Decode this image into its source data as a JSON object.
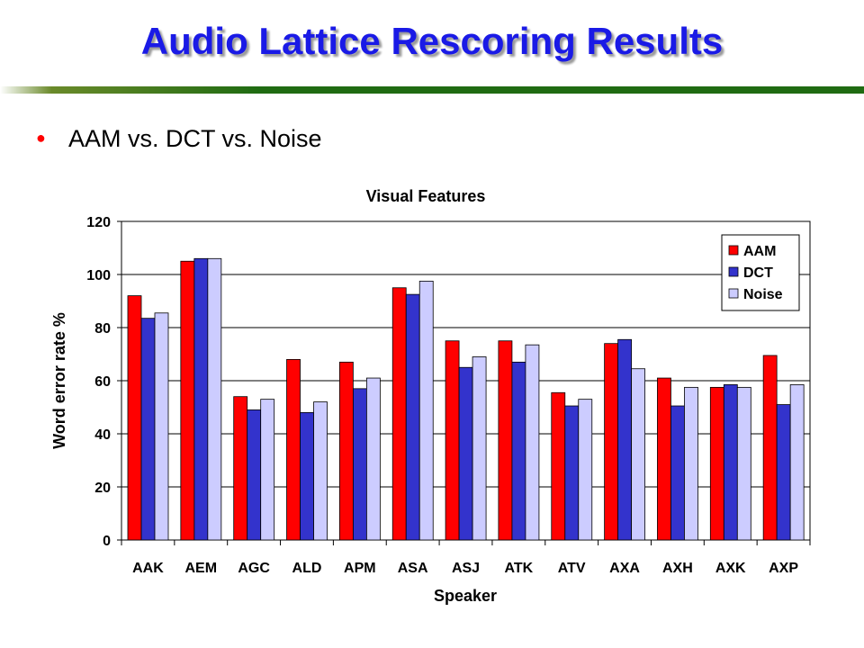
{
  "slide": {
    "title": "Audio Lattice Rescoring Results",
    "bullet": "AAM vs. DCT vs. Noise",
    "bullet_color": "#ff0000",
    "title_color": "#1a1ae6",
    "rule_color": "#1f6b12"
  },
  "chart_data": {
    "type": "bar",
    "title": "Visual Features",
    "xlabel": "Speaker",
    "ylabel": "Word error rate %",
    "ylim": [
      0,
      120
    ],
    "yticks": [
      0,
      20,
      40,
      60,
      80,
      100,
      120
    ],
    "grid": true,
    "legend_position": "top-right",
    "categories": [
      "AAK",
      "AEM",
      "AGC",
      "ALD",
      "APM",
      "ASA",
      "ASJ",
      "ATK",
      "ATV",
      "AXA",
      "AXH",
      "AXK",
      "AXP"
    ],
    "series": [
      {
        "name": "AAM",
        "color": "#ff0000",
        "values": [
          92,
          105,
          54,
          68,
          67,
          95,
          75,
          75,
          55.5,
          74,
          61,
          57.5,
          69.5
        ]
      },
      {
        "name": "DCT",
        "color": "#3333cc",
        "values": [
          83.5,
          106,
          49,
          48,
          57,
          92.5,
          65,
          67,
          50.5,
          75.5,
          50.5,
          58.5,
          51
        ]
      },
      {
        "name": "Noise",
        "color": "#ccccff",
        "values": [
          85.5,
          106,
          53,
          52,
          61,
          97.5,
          69,
          73.5,
          53,
          64.5,
          57.5,
          57.5,
          58.5
        ]
      }
    ]
  }
}
